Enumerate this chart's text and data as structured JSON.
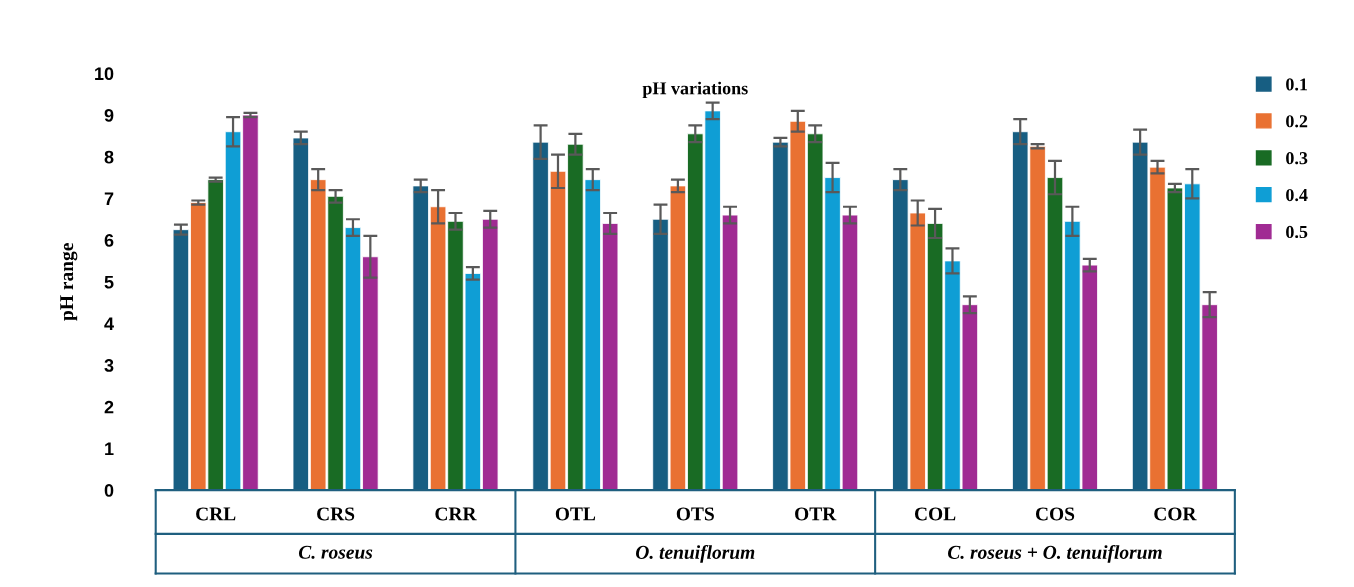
{
  "chart_data": {
    "type": "bar",
    "title": "pH variations",
    "ylabel": "pH range",
    "categories": [
      "CRL",
      "CRS",
      "CRR",
      "OTL",
      "OTS",
      "OTR",
      "COL",
      "COS",
      "COR"
    ],
    "series": [
      {
        "name": "0.1",
        "color": "#175e82",
        "values": [
          6.25,
          8.45,
          7.3,
          8.35,
          6.5,
          8.35,
          7.45,
          8.6,
          8.35
        ],
        "errors": [
          0.12,
          0.15,
          0.15,
          0.4,
          0.35,
          0.1,
          0.25,
          0.3,
          0.3
        ]
      },
      {
        "name": "0.2",
        "color": "#e97132",
        "values": [
          6.9,
          7.45,
          6.8,
          7.65,
          7.3,
          8.85,
          6.65,
          8.25,
          7.75
        ],
        "errors": [
          0.05,
          0.25,
          0.4,
          0.4,
          0.15,
          0.25,
          0.3,
          0.05,
          0.15
        ]
      },
      {
        "name": "0.3",
        "color": "#196b24",
        "values": [
          7.45,
          7.05,
          6.45,
          8.3,
          8.55,
          8.55,
          6.4,
          7.5,
          7.25
        ],
        "errors": [
          0.05,
          0.15,
          0.2,
          0.25,
          0.2,
          0.2,
          0.35,
          0.4,
          0.1
        ]
      },
      {
        "name": "0.4",
        "color": "#0f9ed5",
        "values": [
          8.6,
          6.3,
          5.2,
          7.45,
          9.1,
          7.5,
          5.5,
          6.45,
          7.35
        ],
        "errors": [
          0.35,
          0.2,
          0.15,
          0.25,
          0.2,
          0.35,
          0.3,
          0.35,
          0.35
        ]
      },
      {
        "name": "0.5",
        "color": "#a02b93",
        "values": [
          9.0,
          5.6,
          6.5,
          6.4,
          6.6,
          6.6,
          4.45,
          5.4,
          4.45
        ],
        "errors": [
          0.05,
          0.5,
          0.2,
          0.25,
          0.2,
          0.2,
          0.2,
          0.15,
          0.3
        ]
      }
    ],
    "annotations": [
      "C. roseus",
      "O. tenuiflorum",
      "C. roseus + O. tenuiflorum"
    ],
    "ylim": [
      0,
      10
    ],
    "yticks": [
      0,
      1,
      2,
      3,
      4,
      5,
      6,
      7,
      8,
      9,
      10
    ],
    "grid": false,
    "legend": "top right"
  }
}
